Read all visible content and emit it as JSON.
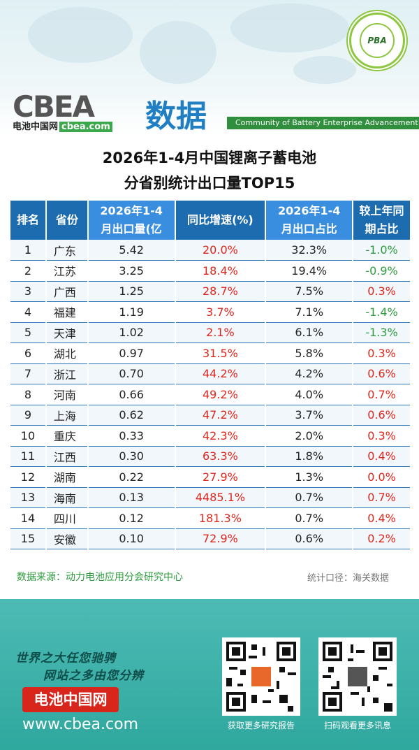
{
  "header": {
    "logo_text": "CBEA",
    "logo_cn": "电池中国网",
    "logo_domain": "cbea.com",
    "shuju": "数据",
    "community": "Community of Battery Enterprise Advancement",
    "seal_text": "PBA"
  },
  "title": {
    "line1": "2026年1-4月中国锂离子蓄电池",
    "line2": "分省别统计出口量TOP15"
  },
  "table": {
    "headers": [
      "排名",
      "省份",
      "2026年1-4\n月出口量(亿",
      "同比增速(%)",
      "2026年1-4\n月出口占比",
      "较上年同\n期占比"
    ],
    "rows": [
      [
        "1",
        "广东",
        "5.42",
        "20.0%",
        "32.3%",
        "-1.0%"
      ],
      [
        "2",
        "江苏",
        "3.25",
        "18.4%",
        "19.4%",
        "-0.9%"
      ],
      [
        "3",
        "广西",
        "1.25",
        "28.7%",
        "7.5%",
        "0.3%"
      ],
      [
        "4",
        "福建",
        "1.19",
        "3.7%",
        "7.1%",
        "-1.4%"
      ],
      [
        "5",
        "天津",
        "1.02",
        "2.1%",
        "6.1%",
        "-1.3%"
      ],
      [
        "6",
        "湖北",
        "0.97",
        "31.5%",
        "5.8%",
        "0.3%"
      ],
      [
        "7",
        "浙江",
        "0.70",
        "44.2%",
        "4.2%",
        "0.6%"
      ],
      [
        "8",
        "河南",
        "0.66",
        "49.2%",
        "4.0%",
        "0.7%"
      ],
      [
        "9",
        "上海",
        "0.62",
        "47.2%",
        "3.7%",
        "0.6%"
      ],
      [
        "10",
        "重庆",
        "0.33",
        "42.3%",
        "2.0%",
        "0.3%"
      ],
      [
        "11",
        "江西",
        "0.30",
        "63.3%",
        "1.8%",
        "0.4%"
      ],
      [
        "12",
        "湖南",
        "0.22",
        "27.9%",
        "1.3%",
        "0.0%"
      ],
      [
        "13",
        "海南",
        "0.13",
        "4485.1%",
        "0.7%",
        "0.7%"
      ],
      [
        "14",
        "四川",
        "0.12",
        "181.3%",
        "0.7%",
        "0.4%"
      ],
      [
        "15",
        "安徽",
        "0.10",
        "72.9%",
        "0.6%",
        "0.2%"
      ]
    ],
    "last_col_colors": [
      "green",
      "green",
      "red",
      "green",
      "green",
      "red",
      "red",
      "red",
      "red",
      "red",
      "red",
      "red",
      "red",
      "red",
      "red"
    ]
  },
  "footer": {
    "source": "数据来源：动力电池应用分会研究中心",
    "caliber": "统计口径：海关数据"
  },
  "bottom": {
    "slogan1": "世界之大任您驰骋",
    "slogan2": "网站之多由您分辨",
    "brand": "电池中国网",
    "site": "www.cbea.com",
    "qr1_caption": "获取更多研究报告",
    "qr2_caption": "扫码观看更多讯息"
  },
  "colors": {
    "header_blue": "#1d6cb0",
    "header_light": "#3a8ee0",
    "up": "#e0251b",
    "down": "#2e9c3e",
    "teal": "#2fa89e"
  }
}
